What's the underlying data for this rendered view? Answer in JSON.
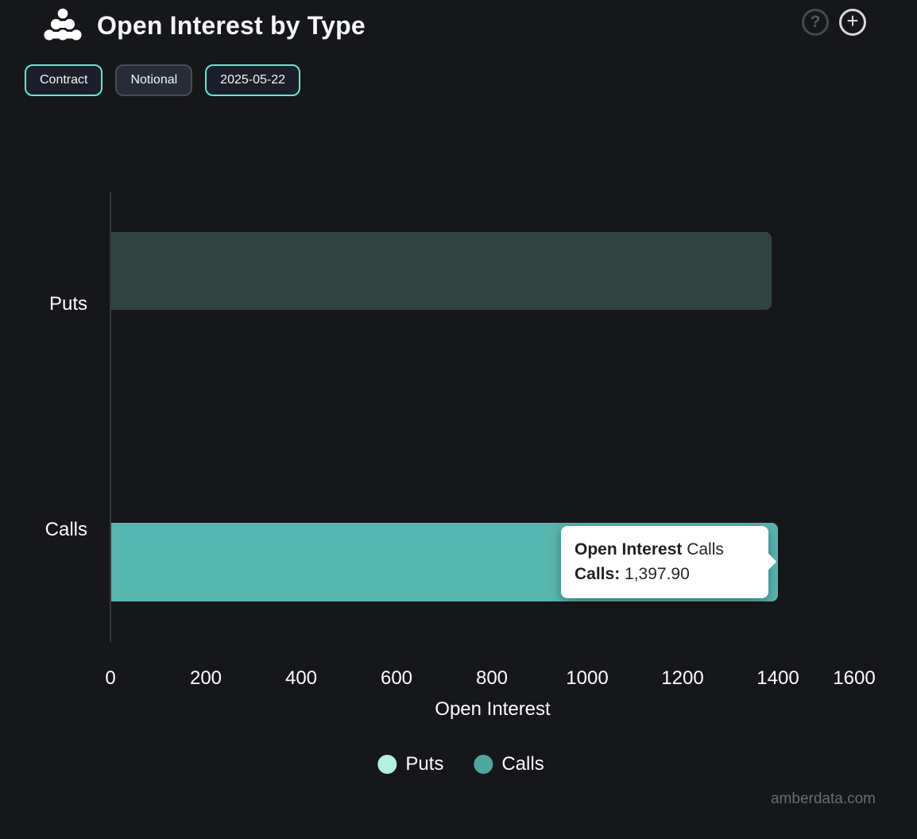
{
  "header": {
    "title": "Open Interest by Type",
    "help_glyph": "?",
    "add_glyph": "+"
  },
  "toolbar": {
    "buttons": [
      {
        "label": "Contract",
        "active": true
      },
      {
        "label": "Notional",
        "active": false
      },
      {
        "label": "2025-05-22",
        "active": true
      }
    ]
  },
  "chart_data": {
    "type": "bar",
    "orientation": "horizontal",
    "title": "Open Interest by Type",
    "categories": [
      "Puts",
      "Calls"
    ],
    "values": [
      1385,
      1397.9
    ],
    "value_note": "Puts value estimated from bar length; Calls value shown in tooltip",
    "xlabel": "Open Interest",
    "ylabel": "",
    "xlim": [
      0,
      1600
    ],
    "x_ticks": [
      0,
      200,
      400,
      600,
      800,
      1000,
      1200,
      1400,
      1600
    ],
    "grid": false,
    "legend_position": "bottom",
    "series_state": {
      "Puts": "dimmed",
      "Calls": "highlighted"
    }
  },
  "tooltip": {
    "title_bold": "Open Interest",
    "title_rest": " Calls",
    "row_bold": "Calls:",
    "row_value": " 1,397.90"
  },
  "legend": [
    {
      "label": "Puts",
      "color": "#aff0e1"
    },
    {
      "label": "Calls",
      "color": "#4da79f"
    }
  ],
  "colors": {
    "background": "#16171a",
    "accent": "#5eead4",
    "puts_bar_dimmed": "#2f4440",
    "calls_bar": "#56b7b0",
    "axis_line": "#34373c",
    "tooltip_bg": "#ffffff"
  },
  "watermark": "amberdata.com"
}
